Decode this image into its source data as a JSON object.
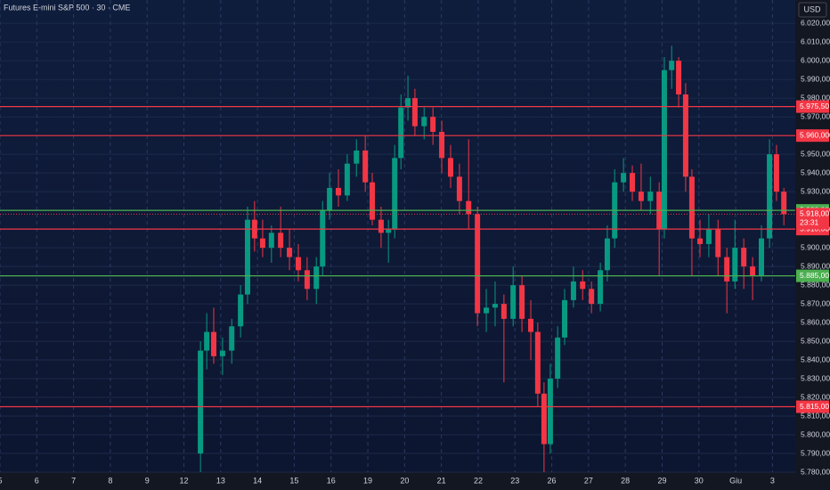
{
  "chart_data": {
    "type": "candlestick",
    "title": "Futures E-mini S&P 500 · 30 · CME",
    "currency": "USD",
    "up_color": "#089981",
    "down_color": "#f23645",
    "grid": true,
    "x": [
      5.45,
      5.62,
      5.81,
      6.05,
      6.3,
      6.54,
      6.73,
      6.92,
      7.14,
      7.38,
      7.63,
      7.87,
      8.11,
      8.35,
      8.6,
      8.77,
      8.96,
      9.2,
      9.44,
      9.69,
      9.93,
      10.12,
      10.36,
      10.56,
      10.73,
      10.9,
      11.09,
      11.28,
      11.53,
      11.77,
      12.01,
      12.25,
      12.49,
      12.74,
      12.98,
      13.22,
      13.46,
      13.7,
      13.95,
      14.19,
      14.43,
      14.62,
      14.79,
      14.96,
      15.16,
      15.35,
      15.59,
      15.84,
      16.08,
      16.32,
      16.51,
      16.71,
      16.95,
      17.19,
      17.43,
      17.68,
      17.92,
      18.06,
      18.26,
      18.45,
      18.64,
      18.81,
      19.03,
      19.27,
      19.52,
      19.76,
      19.98,
      20.22,
      20.46,
      20.7,
      20.92,
      21.11,
      21.31
    ],
    "open": [
      5790,
      5845,
      5855,
      5842,
      5845,
      5858,
      5875,
      5915,
      5905,
      5900,
      5908,
      5900,
      5895,
      5888,
      5878,
      5890,
      5920,
      5932,
      5928,
      5945,
      5952,
      5935,
      5915,
      5908,
      5910,
      5948,
      5975,
      5980,
      5965,
      5970,
      5962,
      5948,
      5938,
      5925,
      5918,
      5865,
      5868,
      5870,
      5862,
      5880,
      5862,
      5855,
      5822,
      5795,
      5830,
      5852,
      5872,
      5882,
      5878,
      5870,
      5888,
      5905,
      5935,
      5940,
      5930,
      5925,
      5930,
      5910,
      5995,
      6000,
      5982,
      5938,
      5905,
      5902,
      5910,
      5895,
      5882,
      5900,
      5890,
      5885,
      5905,
      5950,
      5930
    ],
    "high": [
      5850,
      5865,
      5868,
      5852,
      5862,
      5880,
      5922,
      5925,
      5915,
      5912,
      5922,
      5910,
      5902,
      5895,
      5895,
      5925,
      5940,
      5942,
      5950,
      5958,
      5960,
      5940,
      5922,
      5915,
      5955,
      5982,
      5992,
      5985,
      5975,
      5975,
      5968,
      5955,
      5945,
      5958,
      5922,
      5878,
      5882,
      5875,
      5890,
      5885,
      5872,
      5860,
      5828,
      5838,
      5858,
      5878,
      5890,
      5888,
      5882,
      5892,
      5912,
      5942,
      5948,
      5944,
      5945,
      5938,
      5935,
      6002,
      6008,
      6002,
      5988,
      5942,
      5915,
      5918,
      5915,
      5900,
      5915,
      5905,
      5895,
      5912,
      5958,
      5955,
      5932
    ],
    "low": [
      5780,
      5835,
      5838,
      5832,
      5838,
      5852,
      5870,
      5898,
      5895,
      5892,
      5895,
      5888,
      5882,
      5872,
      5870,
      5885,
      5915,
      5922,
      5925,
      5938,
      5930,
      5912,
      5900,
      5892,
      5905,
      5942,
      5968,
      5960,
      5958,
      5955,
      5940,
      5932,
      5918,
      5910,
      5858,
      5855,
      5858,
      5828,
      5858,
      5855,
      5840,
      5815,
      5780,
      5790,
      5825,
      5848,
      5868,
      5872,
      5865,
      5866,
      5882,
      5900,
      5930,
      5925,
      5920,
      5918,
      5885,
      5905,
      5985,
      5975,
      5930,
      5885,
      5895,
      5895,
      5885,
      5865,
      5878,
      5878,
      5872,
      5882,
      5900,
      5925,
      5912
    ],
    "close": [
      5845,
      5855,
      5842,
      5845,
      5858,
      5875,
      5915,
      5905,
      5900,
      5908,
      5900,
      5895,
      5888,
      5878,
      5890,
      5920,
      5932,
      5928,
      5945,
      5952,
      5935,
      5915,
      5908,
      5910,
      5948,
      5975,
      5980,
      5965,
      5970,
      5962,
      5948,
      5938,
      5925,
      5918,
      5865,
      5868,
      5870,
      5862,
      5880,
      5862,
      5855,
      5822,
      5795,
      5830,
      5852,
      5872,
      5882,
      5878,
      5870,
      5888,
      5905,
      5935,
      5940,
      5930,
      5925,
      5930,
      5910,
      5995,
      6000,
      5982,
      5938,
      5905,
      5902,
      5910,
      5895,
      5882,
      5900,
      5890,
      5885,
      5905,
      5950,
      5930,
      5918
    ],
    "xlim": [
      0,
      21.62
    ],
    "ylim": [
      5780,
      6032.5
    ],
    "xticks": [
      {
        "value": 0,
        "label": "5"
      },
      {
        "value": 1,
        "label": "6"
      },
      {
        "value": 2,
        "label": "7"
      },
      {
        "value": 3,
        "label": "8"
      },
      {
        "value": 4,
        "label": "9"
      },
      {
        "value": 5,
        "label": "12"
      },
      {
        "value": 6,
        "label": "13"
      },
      {
        "value": 7,
        "label": "14"
      },
      {
        "value": 8,
        "label": "15"
      },
      {
        "value": 9,
        "label": "16"
      },
      {
        "value": 10,
        "label": "19"
      },
      {
        "value": 11,
        "label": "20"
      },
      {
        "value": 12,
        "label": "21"
      },
      {
        "value": 13,
        "label": "22"
      },
      {
        "value": 14,
        "label": "23"
      },
      {
        "value": 15,
        "label": "26"
      },
      {
        "value": 16,
        "label": "27"
      },
      {
        "value": 17,
        "label": "28"
      },
      {
        "value": 18,
        "label": "29"
      },
      {
        "value": 19,
        "label": "30"
      },
      {
        "value": 20,
        "label": "Giu"
      },
      {
        "value": 21,
        "label": "3"
      }
    ],
    "yticks": [
      {
        "value": 5780,
        "label": "5.780,00"
      },
      {
        "value": 5790,
        "label": "5.790,00"
      },
      {
        "value": 5800,
        "label": "5.800,00"
      },
      {
        "value": 5810,
        "label": "5.810,00"
      },
      {
        "value": 5820,
        "label": "5.820,00"
      },
      {
        "value": 5830,
        "label": "5.830,00"
      },
      {
        "value": 5840,
        "label": "5.840,00"
      },
      {
        "value": 5850,
        "label": "5.850,00"
      },
      {
        "value": 5860,
        "label": "5.860,00"
      },
      {
        "value": 5870,
        "label": "5.870,00"
      },
      {
        "value": 5880,
        "label": "5.880,00"
      },
      {
        "value": 5890,
        "label": "5.890,00"
      },
      {
        "value": 5900,
        "label": "5.900,00"
      },
      {
        "value": 5910,
        "label": "5.910,00"
      },
      {
        "value": 5920,
        "label": "5.920,00"
      },
      {
        "value": 5930,
        "label": "5.930,00"
      },
      {
        "value": 5940,
        "label": "5.940,00"
      },
      {
        "value": 5950,
        "label": "5.950,00"
      },
      {
        "value": 5960,
        "label": "5.960,00"
      },
      {
        "value": 5970,
        "label": "5.970,00"
      },
      {
        "value": 5980,
        "label": "5.980,00"
      },
      {
        "value": 5990,
        "label": "5.990,00"
      },
      {
        "value": 6000,
        "label": "6.000,00"
      },
      {
        "value": 6010,
        "label": "6.010,00"
      },
      {
        "value": 6020,
        "label": "6.020,00"
      }
    ],
    "hlines": [
      {
        "value": 5975.5,
        "label": "5.975,50",
        "color": "#f23645"
      },
      {
        "value": 5960,
        "label": "5.960,00",
        "color": "#f23645"
      },
      {
        "value": 5920,
        "label": "5.920,00",
        "color": "#4caf50"
      },
      {
        "value": 5910,
        "label": "5.910,00",
        "color": "#f23645"
      },
      {
        "value": 5885,
        "label": "5.885,00",
        "color": "#4caf50"
      },
      {
        "value": 5815,
        "label": "5.815,00",
        "color": "#f23645"
      }
    ],
    "last_price": {
      "value": 5918,
      "label": "5.918,00",
      "countdown": "23:31",
      "color": "#f23645"
    }
  }
}
